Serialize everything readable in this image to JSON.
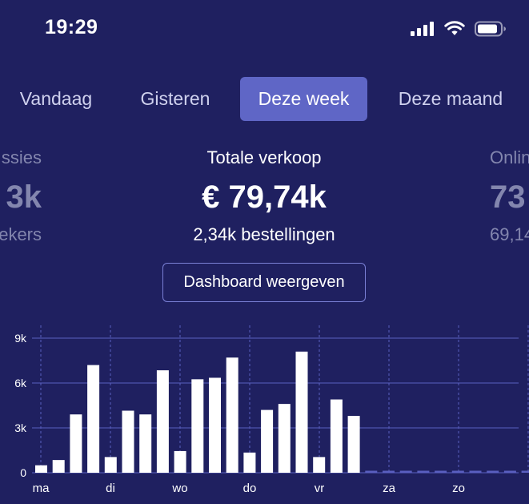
{
  "status_bar": {
    "time": "19:29",
    "icons": [
      "cellular-signal-icon",
      "wifi-icon",
      "battery-icon"
    ]
  },
  "tabs": [
    {
      "label": "Vandaag",
      "active": false
    },
    {
      "label": "Gisteren",
      "active": false
    },
    {
      "label": "Deze week",
      "active": true
    },
    {
      "label": "Deze maand",
      "active": false
    }
  ],
  "kpis": {
    "left": {
      "title": "ssies",
      "value": "3k",
      "sub": "ekers"
    },
    "center": {
      "title": "Totale verkoop",
      "value": "€ 79,74k",
      "sub": "2,34k bestellingen"
    },
    "right": {
      "title": "Onlin",
      "value": "73",
      "sub": "69,14"
    }
  },
  "dashboard_button": {
    "label": "Dashboard weergeven"
  },
  "colors": {
    "background": "#1f2060",
    "active_tab": "#5f66c6",
    "bar": "#ffffff",
    "gridline": "#5a5fc0"
  },
  "chart_data": {
    "type": "bar",
    "y_tick_labels": [
      "0",
      "3k",
      "6k",
      "9k"
    ],
    "y_ticks": [
      0,
      3000,
      6000,
      9000
    ],
    "ylim": [
      0,
      9000
    ],
    "days": [
      "ma",
      "di",
      "wo",
      "do",
      "vr",
      "za",
      "zo"
    ],
    "grid": true,
    "series": [
      {
        "values": [
          500,
          850,
          3900,
          7200,
          1050,
          4150,
          3900,
          6850,
          1450,
          6250,
          6350,
          7700,
          1350,
          4200,
          4600,
          8100,
          1050,
          4900,
          3800,
          0,
          0,
          0,
          0,
          0,
          0,
          0,
          0,
          0,
          0
        ]
      }
    ]
  }
}
